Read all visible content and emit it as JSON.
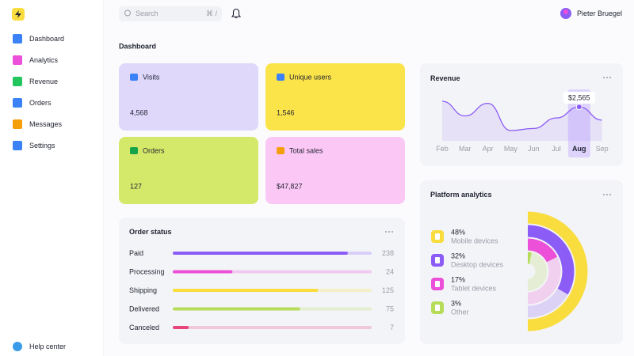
{
  "sidebar": {
    "items": [
      "Dashboard",
      "Analytics",
      "Revenue",
      "Orders",
      "Messages",
      "Settings"
    ],
    "help": "Help center"
  },
  "header": {
    "search": "Search",
    "shortcut": "⌘ /",
    "user": "Pieter Bruegel"
  },
  "page_title": "Dashboard",
  "cards": [
    {
      "label": "Visits",
      "value": "4,568"
    },
    {
      "label": "Unique users",
      "value": "1,546"
    },
    {
      "label": "Orders",
      "value": "127"
    },
    {
      "label": "Total sales",
      "value": "$47,827"
    }
  ],
  "chart_data": [
    {
      "type": "line",
      "title": "Revenue",
      "categories": [
        "Feb",
        "Mar",
        "Apr",
        "May",
        "Jun",
        "Jul",
        "Aug",
        "Sep"
      ],
      "values": [
        2700,
        2350,
        2650,
        2000,
        2050,
        2300,
        2565,
        2250
      ],
      "value_labels": [
        null,
        null,
        null,
        null,
        null,
        null,
        "$2,565",
        null
      ],
      "color": "#8b5cf6"
    },
    {
      "type": "progress",
      "title": "Order status",
      "categories": [
        "Paid",
        "Processing",
        "Shipping",
        "Delivered",
        "Canceled"
      ],
      "values": [
        238,
        24,
        125,
        75,
        7
      ],
      "progress": [
        88,
        30,
        73,
        64,
        8
      ],
      "colors": [
        "#8b5cf6",
        "#ec4fd8",
        "#f9dc3e",
        "#b7dc5a",
        "#e8457a"
      ]
    },
    {
      "type": "rings",
      "title": "Platform analytics",
      "categories": [
        "Mobile devices",
        "Desktop devices",
        "Tablet devices",
        "Other"
      ],
      "values": [
        48,
        32,
        17,
        3
      ],
      "value_labels": [
        "48%",
        "32%",
        "17%",
        "3%"
      ],
      "colors": [
        "#f9dc3e",
        "#8b5cf6",
        "#ec4fd8",
        "#b7dc5a"
      ]
    }
  ]
}
